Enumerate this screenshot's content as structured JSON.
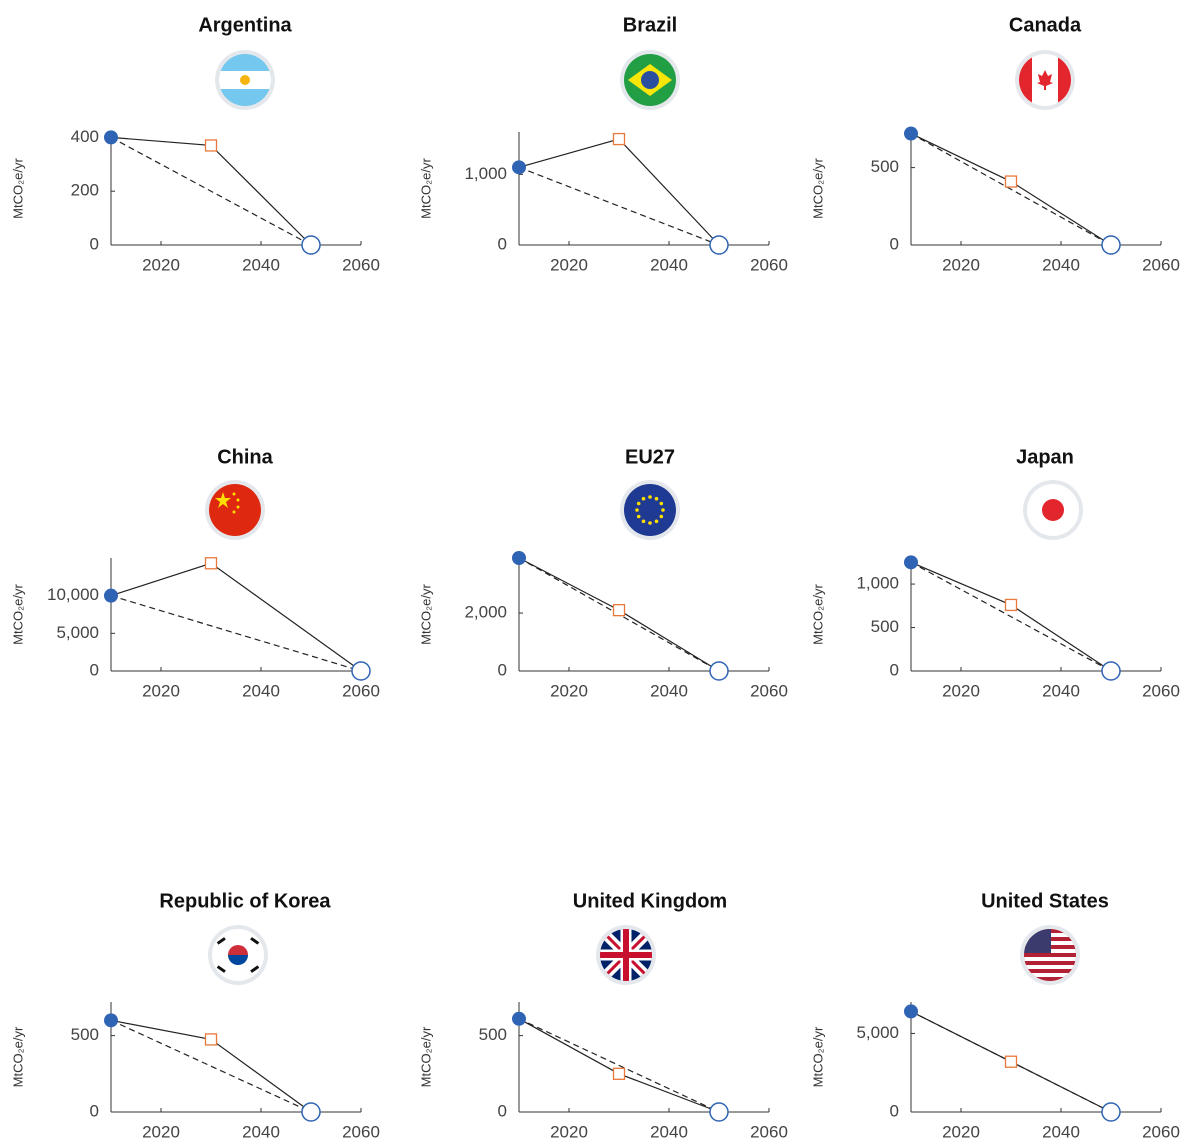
{
  "chart_data": [
    {
      "type": "line",
      "title": "Argentina",
      "ylabel": "MtCO₂e/yr",
      "x": [
        2010,
        2030,
        2050
      ],
      "series": [
        {
          "values": [
            400,
            370,
            0
          ]
        }
      ],
      "color": "#222222",
      "marker_colors": [
        "#2f63b3",
        "#e8793a",
        "#2f63b3"
      ],
      "xlim": [
        2010,
        2060
      ],
      "xticks": [
        2020,
        2040,
        2060
      ],
      "ylim": [
        0,
        420
      ],
      "yticks": [
        0,
        200,
        400
      ]
    },
    {
      "type": "line",
      "title": "Brazil",
      "ylabel": "MtCO₂e/yr",
      "x": [
        2010,
        2030,
        2050
      ],
      "series": [
        {
          "values": [
            1100,
            1500,
            0
          ]
        }
      ],
      "color": "#222222",
      "marker_colors": [
        "#2f63b3",
        "#e8793a",
        "#2f63b3"
      ],
      "xlim": [
        2010,
        2060
      ],
      "xticks": [
        2020,
        2040,
        2060
      ],
      "ylim": [
        0,
        1600
      ],
      "yticks": [
        0,
        {
          "value": 1000,
          "label": "1,000"
        }
      ]
    },
    {
      "type": "line",
      "title": "Canada",
      "ylabel": "MtCO₂e/yr",
      "x": [
        2010,
        2030,
        2050
      ],
      "series": [
        {
          "values": [
            720,
            410,
            0
          ]
        }
      ],
      "color": "#222222",
      "marker_colors": [
        "#2f63b3",
        "#e8793a",
        "#2f63b3"
      ],
      "xlim": [
        2010,
        2060
      ],
      "xticks": [
        2020,
        2040,
        2060
      ],
      "ylim": [
        0,
        730
      ],
      "yticks": [
        0,
        500
      ]
    },
    {
      "type": "line",
      "title": "China",
      "ylabel": "MtCO₂e/yr",
      "x": [
        2010,
        2030,
        2060
      ],
      "series": [
        {
          "values": [
            10000,
            14300,
            0
          ]
        }
      ],
      "color": "#222222",
      "marker_colors": [
        "#2f63b3",
        "#e8793a",
        "#2f63b3"
      ],
      "xlim": [
        2010,
        2060
      ],
      "xticks": [
        2020,
        2040,
        2060
      ],
      "ylim": [
        0,
        15000
      ],
      "yticks": [
        0,
        {
          "value": 5000,
          "label": "5,000"
        },
        {
          "value": 10000,
          "label": "10,000"
        }
      ]
    },
    {
      "type": "line",
      "title": "EU27",
      "ylabel": "MtCO₂e/yr",
      "x": [
        2010,
        2030,
        2050
      ],
      "series": [
        {
          "values": [
            3900,
            2100,
            0
          ]
        }
      ],
      "color": "#222222",
      "marker_colors": [
        "#2f63b3",
        "#e8793a",
        "#2f63b3"
      ],
      "xlim": [
        2010,
        2060
      ],
      "xticks": [
        2020,
        2040,
        2060
      ],
      "ylim": [
        0,
        3900
      ],
      "yticks": [
        0,
        {
          "value": 2000,
          "label": "2,000"
        }
      ]
    },
    {
      "type": "line",
      "title": "Japan",
      "ylabel": "MtCO₂e/yr",
      "x": [
        2010,
        2030,
        2050
      ],
      "series": [
        {
          "values": [
            1250,
            760,
            0
          ]
        }
      ],
      "color": "#222222",
      "marker_colors": [
        "#2f63b3",
        "#e8793a",
        "#2f63b3"
      ],
      "xlim": [
        2010,
        2060
      ],
      "xticks": [
        2020,
        2040,
        2060
      ],
      "ylim": [
        0,
        1300
      ],
      "yticks": [
        0,
        500,
        {
          "value": 1000,
          "label": "1,000"
        }
      ]
    },
    {
      "type": "line",
      "title": "Republic of Korea",
      "ylabel": "MtCO₂e/yr",
      "x": [
        2010,
        2030,
        2050
      ],
      "series": [
        {
          "values": [
            600,
            475,
            0
          ]
        }
      ],
      "color": "#222222",
      "marker_colors": [
        "#2f63b3",
        "#e8793a",
        "#2f63b3"
      ],
      "xlim": [
        2010,
        2060
      ],
      "xticks": [
        2020,
        2040,
        2060
      ],
      "ylim": [
        0,
        720
      ],
      "yticks": [
        0,
        500
      ]
    },
    {
      "type": "line",
      "title": "United Kingdom",
      "ylabel": "MtCO₂e/yr",
      "x": [
        2010,
        2030,
        2050
      ],
      "series": [
        {
          "values": [
            610,
            250,
            0
          ]
        }
      ],
      "color": "#222222",
      "marker_colors": [
        "#2f63b3",
        "#e8793a",
        "#2f63b3"
      ],
      "xlim": [
        2010,
        2060
      ],
      "xticks": [
        2020,
        2040,
        2060
      ],
      "ylim": [
        0,
        720
      ],
      "yticks": [
        0,
        500
      ]
    },
    {
      "type": "line",
      "title": "United States",
      "ylabel": "MtCO₂e/yr",
      "x": [
        2010,
        2030,
        2050
      ],
      "series": [
        {
          "values": [
            6400,
            3200,
            0
          ]
        }
      ],
      "color": "#222222",
      "marker_colors": [
        "#2f63b3",
        "#e8793a",
        "#2f63b3"
      ],
      "xlim": [
        2010,
        2060
      ],
      "xticks": [
        2020,
        2040,
        2060
      ],
      "ylim": [
        0,
        7000
      ],
      "yticks": [
        0,
        {
          "value": 5000,
          "label": "5,000"
        }
      ]
    }
  ]
}
